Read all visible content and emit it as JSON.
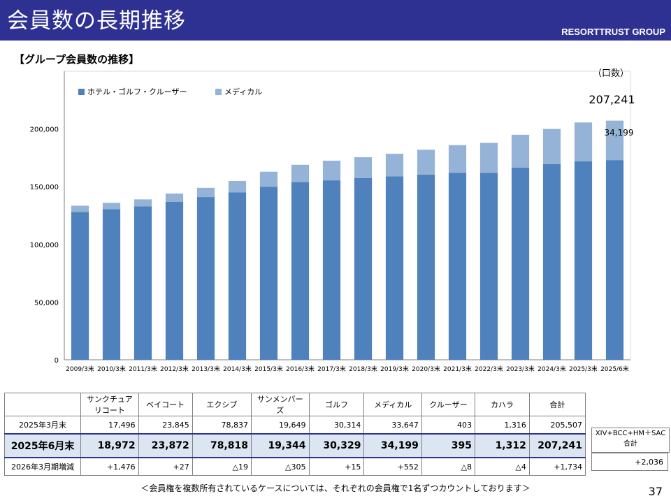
{
  "header": {
    "title": "会員数の長期推移",
    "brand": "RESORTTRUST GROUP"
  },
  "section_title": "【グループ会員数の推移】",
  "unit": "（口数）",
  "page_number": "37",
  "note": "＜会員権を複数所有されているケースについては、それぞれの会員権で1名ずつカウントしております＞",
  "colors": {
    "header_bg": "#2e3192",
    "series_hotel": "#4f81bd",
    "series_medical": "#95b3d7",
    "highlight_row": "#dce6f2"
  },
  "chart_data": {
    "type": "bar",
    "stacked": true,
    "categories": [
      "2009/3末",
      "2010/3末",
      "2011/3末",
      "2012/3末",
      "2013/3末",
      "2014/3末",
      "2015/3末",
      "2016/3末",
      "2017/3末",
      "2018/3末",
      "2019/3末",
      "2020/3末",
      "2021/3末",
      "2022/3末",
      "2023/3末",
      "2024/3末",
      "2025/3末",
      "2025/6末"
    ],
    "series": [
      {
        "name": "ホテル・ゴルフ・クルーザー",
        "values": [
          128000,
          130500,
          133000,
          137000,
          141000,
          145000,
          150000,
          154000,
          155500,
          157500,
          159000,
          160500,
          162000,
          162000,
          166500,
          169500,
          172000,
          173042
        ]
      },
      {
        "name": "メディカル",
        "values": [
          5500,
          5500,
          6000,
          7000,
          8000,
          10000,
          13000,
          15000,
          17000,
          18000,
          19500,
          21500,
          24000,
          26000,
          28500,
          30500,
          33647,
          34199
        ]
      }
    ],
    "ylim": [
      0,
      250000
    ],
    "yticks": [
      0,
      50000,
      100000,
      150000,
      200000
    ],
    "ytick_labels": [
      "0",
      "50,000",
      "100,000",
      "150,000",
      "200,000"
    ],
    "legend_position": "top-left",
    "annotations": {
      "total_last": "207,241",
      "medical_last": "34,199"
    }
  },
  "table": {
    "headers": [
      "",
      "サンクチュアリコート",
      "ベイコート",
      "エクシブ",
      "サンメンバーズ",
      "ゴルフ",
      "メディカル",
      "クルーザー",
      "カハラ",
      "合計"
    ],
    "rows": [
      [
        "2025年3月末",
        "17,496",
        "23,845",
        "78,837",
        "19,649",
        "30,314",
        "33,647",
        "403",
        "1,316",
        "205,507"
      ],
      [
        "2025年6月末",
        "18,972",
        "23,872",
        "78,818",
        "19,344",
        "30,329",
        "34,199",
        "395",
        "1,312",
        "207,241"
      ],
      [
        "2026年3月期増減",
        "+1,476",
        "+27",
        "△19",
        "△305",
        "+15",
        "+552",
        "△8",
        "△4",
        "+1,734"
      ]
    ],
    "side_label": "XIV+BCC+HM＋SAC 合計",
    "side_value": "+2,036"
  }
}
